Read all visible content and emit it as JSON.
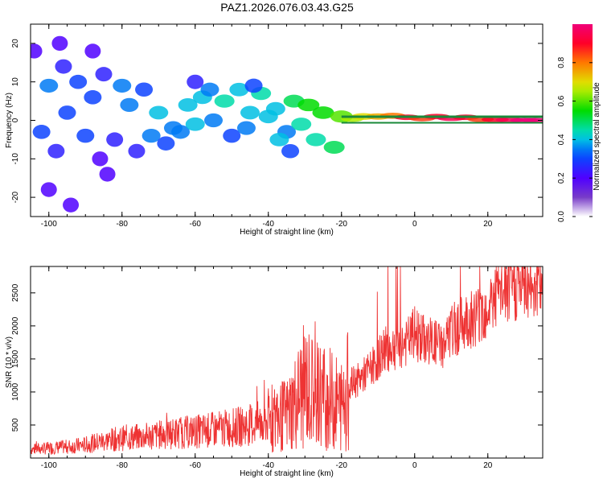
{
  "title": "PAZ1.2026.076.03.43.G25",
  "colors": {
    "snr_line": "#ee3333",
    "frame": "#000000"
  },
  "colorbar": {
    "label": "Normalized spectral amplitude",
    "ticks": [
      "0.0",
      "0.2",
      "0.4",
      "0.6",
      "0.8"
    ],
    "tick_values": [
      0.0,
      0.2,
      0.4,
      0.6,
      0.8
    ],
    "range": [
      0,
      1
    ]
  },
  "chart_data": [
    {
      "type": "heatmap",
      "name": "spectrogram",
      "xlabel": "Height of straight line (km)",
      "ylabel": "Frequency (Hz)",
      "xlim": [
        -105,
        35
      ],
      "ylim": [
        -25,
        25
      ],
      "xticks": [
        "-100",
        "-80",
        "-60",
        "-40",
        "-20",
        "0",
        "20"
      ],
      "xtick_values": [
        -100,
        -80,
        -60,
        -40,
        -20,
        0,
        20
      ],
      "yticks": [
        "20",
        "10",
        "0",
        "-10",
        "-20"
      ],
      "ytick_values": [
        20,
        10,
        0,
        -10,
        -20
      ],
      "blobs": [
        [
          -100,
          9,
          0.35
        ],
        [
          -96,
          14,
          0.25
        ],
        [
          -92,
          10,
          0.3
        ],
        [
          -88,
          6,
          0.3
        ],
        [
          -85,
          12,
          0.25
        ],
        [
          -80,
          9,
          0.35
        ],
        [
          -78,
          4,
          0.35
        ],
        [
          -74,
          8,
          0.3
        ],
        [
          -70,
          2,
          0.4
        ],
        [
          -66,
          -2,
          0.35
        ],
        [
          -62,
          4,
          0.4
        ],
        [
          -58,
          6,
          0.4
        ],
        [
          -55,
          0,
          0.35
        ],
        [
          -52,
          5,
          0.45
        ],
        [
          -48,
          8,
          0.4
        ],
        [
          -45,
          2,
          0.4
        ],
        [
          -42,
          7,
          0.45
        ],
        [
          -38,
          3,
          0.4
        ],
        [
          -35,
          -3,
          0.35
        ],
        [
          -33,
          5,
          0.5
        ],
        [
          -31,
          -1,
          0.45
        ],
        [
          -29,
          4,
          0.55
        ],
        [
          -27,
          -5,
          0.45
        ],
        [
          -25,
          2,
          0.55
        ],
        [
          -22,
          -7,
          0.5
        ],
        [
          -20,
          1,
          0.6
        ],
        [
          -17,
          0.5,
          0.65
        ],
        [
          -14,
          1,
          0.7
        ],
        [
          -10,
          1,
          0.75
        ],
        [
          -6,
          1.2,
          0.8
        ],
        [
          -2,
          0.8,
          0.9
        ],
        [
          2,
          0.5,
          0.85
        ],
        [
          6,
          1,
          0.9
        ],
        [
          10,
          0.5,
          0.95
        ],
        [
          14,
          0.8,
          0.9
        ],
        [
          18,
          0.3,
          0.85
        ],
        [
          22,
          0.2,
          0.9
        ],
        [
          26,
          0.1,
          0.95
        ],
        [
          30,
          0,
          1.0
        ],
        [
          33,
          0,
          1.0
        ],
        [
          -102,
          -3,
          0.3
        ],
        [
          -98,
          -8,
          0.25
        ],
        [
          -95,
          2,
          0.3
        ],
        [
          -90,
          -4,
          0.3
        ],
        [
          -86,
          -10,
          0.2
        ],
        [
          -82,
          -5,
          0.25
        ],
        [
          -76,
          -8,
          0.25
        ],
        [
          -72,
          -4,
          0.35
        ],
        [
          -68,
          -6,
          0.3
        ],
        [
          -64,
          -3,
          0.35
        ],
        [
          -60,
          -1,
          0.4
        ],
        [
          -56,
          8,
          0.35
        ],
        [
          -50,
          -4,
          0.3
        ],
        [
          -46,
          -2,
          0.35
        ],
        [
          -40,
          1,
          0.4
        ],
        [
          -37,
          -5,
          0.4
        ],
        [
          -34,
          -8,
          0.3
        ],
        [
          -104,
          18,
          0.2
        ],
        [
          -97,
          20,
          0.2
        ],
        [
          -88,
          18,
          0.2
        ],
        [
          -100,
          -18,
          0.2
        ],
        [
          -94,
          -22,
          0.2
        ],
        [
          -84,
          -14,
          0.2
        ],
        [
          -60,
          10,
          0.25
        ],
        [
          -44,
          9,
          0.3
        ]
      ]
    },
    {
      "type": "line",
      "name": "snr",
      "xlabel": "Height of straight line (km)",
      "ylabel": "SNR (10 * v/v)",
      "xlim": [
        -105,
        35
      ],
      "ylim": [
        0,
        2900
      ],
      "xticks": [
        "-100",
        "-80",
        "-60",
        "-40",
        "-20",
        "0",
        "20"
      ],
      "xtick_values": [
        -100,
        -80,
        -60,
        -40,
        -20,
        0,
        20
      ],
      "yticks": [
        "500",
        "1000",
        "1500",
        "2000",
        "2500"
      ],
      "ytick_values": [
        500,
        1000,
        1500,
        2000,
        2500
      ],
      "series": [
        {
          "name": "SNR",
          "x": [
            -105,
            -100,
            -95,
            -90,
            -85,
            -80,
            -75,
            -70,
            -65,
            -60,
            -55,
            -50,
            -45,
            -40,
            -35,
            -32,
            -30,
            -28,
            -25,
            -22,
            -20,
            -18,
            -15,
            -12,
            -10,
            -8,
            -5,
            -2,
            0,
            2,
            5,
            8,
            10,
            12,
            15,
            18,
            20,
            22,
            25,
            28,
            30,
            33,
            35
          ],
          "y": [
            130,
            150,
            170,
            200,
            260,
            300,
            320,
            350,
            380,
            400,
            430,
            460,
            500,
            560,
            650,
            900,
            1100,
            1000,
            950,
            850,
            800,
            1100,
            1200,
            1350,
            1500,
            1650,
            1700,
            1750,
            1900,
            1800,
            1750,
            1700,
            1900,
            2000,
            2100,
            2200,
            2300,
            2450,
            2550,
            2600,
            2650,
            2650,
            2700
          ]
        }
      ]
    }
  ]
}
